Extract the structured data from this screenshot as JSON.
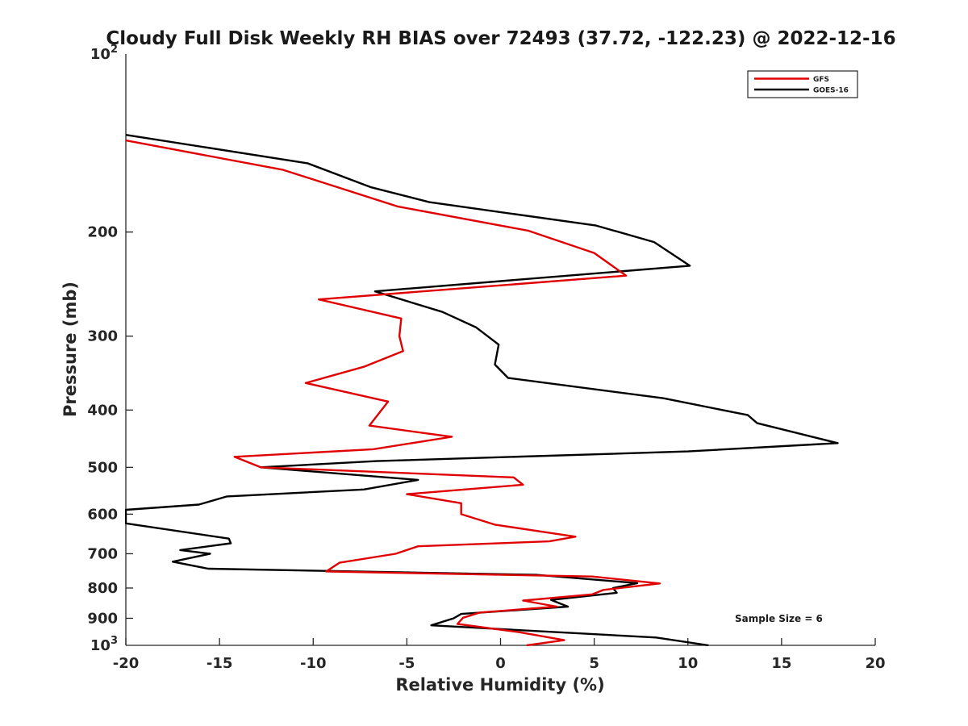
{
  "chart_data": {
    "type": "line",
    "title": "Cloudy Full Disk Weekly RH BIAS over 72493 (37.72, -122.23) @ 2022-12-16",
    "xlabel": "Relative Humidity (%)",
    "ylabel": "Pressure (mb)",
    "xlim": [
      -20,
      20
    ],
    "ylim": [
      100,
      1000
    ],
    "y_scale": "log",
    "y_reversed": true,
    "grid": false,
    "legend_position": "top-right",
    "x_ticks": [
      -20,
      -15,
      -10,
      -5,
      0,
      5,
      10,
      15,
      20
    ],
    "x_tick_labels": [
      "-20",
      "-15",
      "-10",
      "-5",
      "0",
      "5",
      "10",
      "15",
      "20"
    ],
    "y_ticks": [
      200,
      300,
      400,
      500,
      600,
      700,
      800,
      900
    ],
    "y_tick_labels": [
      "200",
      "300",
      "400",
      "500",
      "600",
      "700",
      "800",
      "900"
    ],
    "y_edge_labels": [
      {
        "value": 100,
        "base": "10",
        "exp": "2"
      },
      {
        "value": 1000,
        "base": "10",
        "exp": "3"
      }
    ],
    "annotation": "Sample Size = 6",
    "series": [
      {
        "name": "GFS",
        "color": "#e00000",
        "points": [
          [
            -20,
            140
          ],
          [
            -11.6,
            157
          ],
          [
            -5.5,
            181
          ],
          [
            1.5,
            199
          ],
          [
            5,
            217
          ],
          [
            6.7,
            237
          ],
          [
            -9.7,
            260
          ],
          [
            -5.3,
            280
          ],
          [
            -5.4,
            300
          ],
          [
            -5.2,
            318
          ],
          [
            -7.3,
            338
          ],
          [
            -10.4,
            360
          ],
          [
            -6,
            387
          ],
          [
            -7,
            425
          ],
          [
            -2.6,
            444
          ],
          [
            -6.8,
            466
          ],
          [
            -14.2,
            480
          ],
          [
            -12.8,
            500
          ],
          [
            0.7,
            520
          ],
          [
            1.2,
            535
          ],
          [
            -5,
            555
          ],
          [
            -2.1,
            575
          ],
          [
            -2.1,
            600
          ],
          [
            -0.3,
            625
          ],
          [
            4,
            655
          ],
          [
            2.6,
            667
          ],
          [
            -4.4,
            680
          ],
          [
            -5.6,
            700
          ],
          [
            -8.6,
            725
          ],
          [
            -9.3,
            750
          ],
          [
            4.9,
            765
          ],
          [
            8.5,
            786
          ],
          [
            5.5,
            806
          ],
          [
            4.9,
            820
          ],
          [
            1.2,
            840
          ],
          [
            3,
            860
          ],
          [
            -1.1,
            880
          ],
          [
            -2,
            898
          ],
          [
            -2.3,
            920
          ],
          [
            1,
            950
          ],
          [
            3.4,
            980
          ],
          [
            1.4,
            1000
          ]
        ]
      },
      {
        "name": "GOES-16",
        "color": "#000000",
        "points": [
          [
            -20,
            137
          ],
          [
            -10.3,
            153
          ],
          [
            -6.9,
            168
          ],
          [
            -3.8,
            178
          ],
          [
            5.1,
            195
          ],
          [
            8.2,
            208
          ],
          [
            10.1,
            228
          ],
          [
            -6.7,
            252
          ],
          [
            -3.1,
            273
          ],
          [
            -1.3,
            290
          ],
          [
            -0.1,
            310
          ],
          [
            -0.3,
            335
          ],
          [
            0.4,
            353
          ],
          [
            8.7,
            382
          ],
          [
            13.2,
            408
          ],
          [
            13.7,
            421
          ],
          [
            18,
            455
          ],
          [
            10,
            470
          ],
          [
            -6.6,
            488
          ],
          [
            -12.8,
            500
          ],
          [
            -4.4,
            525
          ],
          [
            -7.3,
            545
          ],
          [
            -14.6,
            560
          ],
          [
            -16.1,
            578
          ],
          [
            -20,
            590
          ],
          [
            -20,
            622
          ],
          [
            -14.5,
            660
          ],
          [
            -14.4,
            672
          ],
          [
            -17.1,
            690
          ],
          [
            -15.5,
            700
          ],
          [
            -17.5,
            722
          ],
          [
            -15.6,
            742
          ],
          [
            1.9,
            760
          ],
          [
            7.3,
            785
          ],
          [
            6,
            800
          ],
          [
            6.2,
            815
          ],
          [
            2.7,
            838
          ],
          [
            3.6,
            860
          ],
          [
            -2.1,
            885
          ],
          [
            -2.5,
            900
          ],
          [
            -3.7,
            925
          ],
          [
            8.3,
            970
          ],
          [
            11.1,
            1000
          ]
        ]
      }
    ]
  }
}
